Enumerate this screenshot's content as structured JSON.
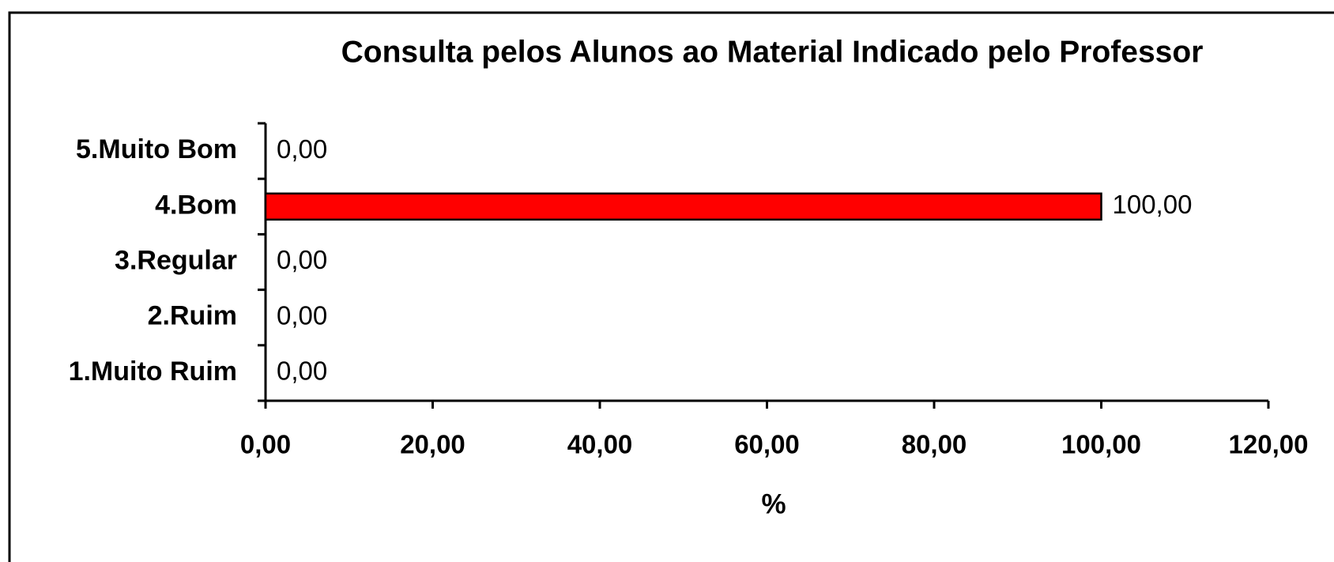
{
  "chart_data": {
    "type": "bar",
    "orientation": "horizontal",
    "title": "Consulta pelos Alunos ao Material Indicado pelo Professor",
    "x_label": "%",
    "categories": [
      "5.Muito Bom",
      "4.Bom",
      "3.Regular",
      "2.Ruim",
      "1.Muito Ruim"
    ],
    "values": [
      0,
      100,
      0,
      0,
      0
    ],
    "value_labels": [
      "0,00",
      "100,00",
      "0,00",
      "0,00",
      "0,00"
    ],
    "color": "#ff0000",
    "xlim": [
      0,
      120
    ],
    "xticks": [
      {
        "value": 0,
        "label": "0,00"
      },
      {
        "value": 20,
        "label": "20,00"
      },
      {
        "value": 40,
        "label": "40,00"
      },
      {
        "value": 60,
        "label": "60,00"
      },
      {
        "value": 80,
        "label": "80,00"
      },
      {
        "value": 100,
        "label": "100,00"
      },
      {
        "value": 120,
        "label": "120,00"
      }
    ],
    "grid": false
  }
}
